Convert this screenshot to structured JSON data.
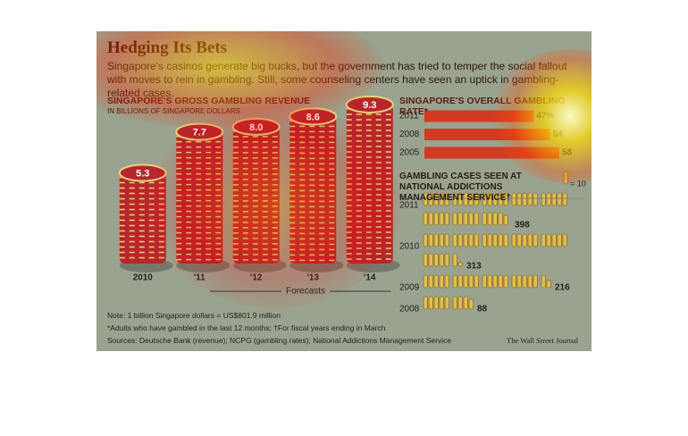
{
  "header": {
    "title": "Hedging Its Bets",
    "subtitle": "Singapore's casinos generate big bucks, but the government has tried to temper the social fallout with moves to rein in gambling. Still, some counseling centers have seen an uptick in gambling-related cases."
  },
  "chart_data": [
    {
      "type": "bar",
      "title": "SINGAPORE'S GROSS GAMBLING REVENUE",
      "subtitle": "IN BILLIONS OF SINGAPORE DOLLARS",
      "categories": [
        "2010",
        "'11",
        "'12",
        "'13",
        "'14"
      ],
      "values": [
        5.3,
        7.7,
        8.0,
        8.6,
        9.3
      ],
      "value_labels": [
        "5.3",
        "7.7",
        "8.0",
        "8.6",
        "9.3"
      ],
      "annotation": "Forecasts",
      "color": "#b8262b"
    },
    {
      "type": "hbar",
      "title": "SINGAPORE'S OVERALL GAMBLING RATE*",
      "categories": [
        "2011",
        "2008",
        "2005"
      ],
      "values": [
        47,
        54,
        58
      ],
      "value_labels": [
        "47%",
        "54",
        "58"
      ],
      "color": "#d23a22"
    },
    {
      "type": "pictogram",
      "title": "GAMBLING CASES SEEN AT NATIONAL ADDICTIONS MANAGEMENT SERVICE†",
      "unit_label": "= 10",
      "categories": [
        "2011",
        "2010",
        "2009",
        "2008"
      ],
      "values": [
        398,
        313,
        216,
        88
      ],
      "color": "#e3bd4f"
    }
  ],
  "notes": [
    "Note: 1 billion Singapore dollars = US$801.9 million",
    "*Adults who have gambled in the last 12 months; †For fiscal years ending in March",
    "Sources: Deutsche Bank (revenue); NCPG (gambling rates); National Addictions Management Service"
  ],
  "source": "The Wall Street Journal"
}
